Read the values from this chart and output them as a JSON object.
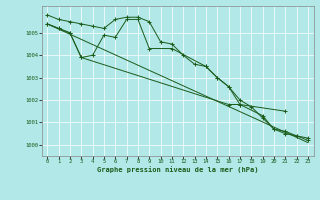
{
  "title": "Graphe pression niveau de la mer (hPa)",
  "background_color": "#b2e8e8",
  "grid_color": "#ffffff",
  "line_color": "#1a5c1a",
  "xlim": [
    -0.5,
    23.5
  ],
  "ylim": [
    999.5,
    1006.2
  ],
  "yticks": [
    1000,
    1001,
    1002,
    1003,
    1004,
    1005
  ],
  "xticks": [
    0,
    1,
    2,
    3,
    4,
    5,
    6,
    7,
    8,
    9,
    10,
    11,
    12,
    13,
    14,
    15,
    16,
    17,
    18,
    19,
    20,
    21,
    22,
    23
  ],
  "line1_x": [
    0,
    1,
    2,
    3,
    4,
    5,
    6,
    7,
    8,
    9,
    10,
    11,
    12,
    13,
    14,
    15,
    16,
    17,
    18,
    19,
    20,
    21,
    22,
    23
  ],
  "line1_y": [
    1005.8,
    1005.6,
    1005.5,
    1005.4,
    1005.3,
    1005.2,
    1005.6,
    1005.7,
    1005.7,
    1005.5,
    1004.6,
    1004.5,
    1004.0,
    1003.6,
    1003.5,
    1003.0,
    1002.6,
    1002.0,
    1001.7,
    1001.2,
    1000.7,
    1000.6,
    1000.4,
    1000.3
  ],
  "line2_x": [
    0,
    23
  ],
  "line2_y": [
    1005.4,
    1000.1
  ],
  "line3_x": [
    0,
    1,
    2,
    3,
    4,
    5,
    6,
    7,
    8,
    9,
    10,
    11,
    12,
    13,
    14,
    15,
    16,
    17,
    18,
    19,
    20,
    21,
    22,
    23
  ],
  "line3_y": [
    1005.4,
    1005.2,
    1005.0,
    1003.9,
    1004.0,
    1004.9,
    1004.8,
    1005.6,
    1005.6,
    1004.3,
    null,
    1004.3,
    null,
    null,
    1003.5,
    1003.0,
    1002.6,
    1001.8,
    null,
    null,
    null,
    1001.5,
    null,
    null
  ],
  "line4_x": [
    0,
    1,
    2,
    3,
    4,
    5,
    6,
    7,
    8,
    9,
    10,
    11,
    12,
    13,
    14,
    15,
    16,
    17,
    18,
    19,
    20,
    21,
    22,
    23
  ],
  "line4_y": [
    1005.4,
    1005.2,
    1005.0,
    1003.9,
    null,
    null,
    null,
    null,
    null,
    null,
    null,
    null,
    null,
    null,
    null,
    null,
    1001.8,
    1001.8,
    null,
    1001.3,
    1000.7,
    1000.5,
    1000.4,
    1000.2
  ]
}
